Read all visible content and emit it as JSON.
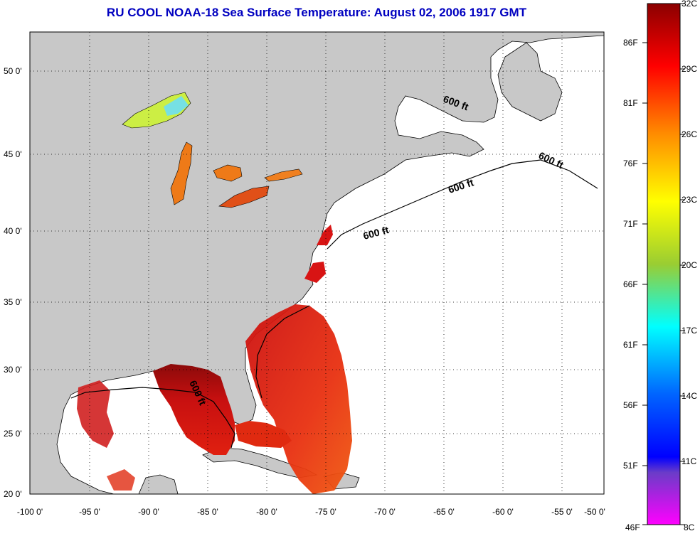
{
  "title": "RU COOL  NOAA-18  Sea Surface Temperature:  August 02, 2006 1917 GMT",
  "map": {
    "lon_ticks": [
      "-100 0'",
      "-95 0'",
      "-90 0'",
      "-85 0'",
      "-80 0'",
      "-75 0'",
      "-70 0'",
      "-65 0'",
      "-60 0'",
      "-55 0'",
      "-50 0'"
    ],
    "lat_ticks": [
      "50 0'",
      "45 0'",
      "40 0'",
      "35 0'",
      "30 0'",
      "25 0'",
      "20 0'"
    ],
    "depth_label": "600 ft",
    "land_color": "#c8c8c8",
    "ocean_color": "#ffffff"
  },
  "colorbar": {
    "celsius_labels": [
      "32C",
      "29C",
      "26C",
      "23C",
      "20C",
      "17C",
      "14C",
      "11C",
      "8C"
    ],
    "fahrenheit_labels": [
      "86F",
      "81F",
      "76F",
      "71F",
      "66F",
      "61F",
      "56F",
      "51F",
      "46F"
    ],
    "gradient": [
      "#8b0000",
      "#ff0000",
      "#ff8c00",
      "#ffff00",
      "#9acd32",
      "#00ffff",
      "#0064ff",
      "#0000ff",
      "#ff00ff"
    ]
  }
}
